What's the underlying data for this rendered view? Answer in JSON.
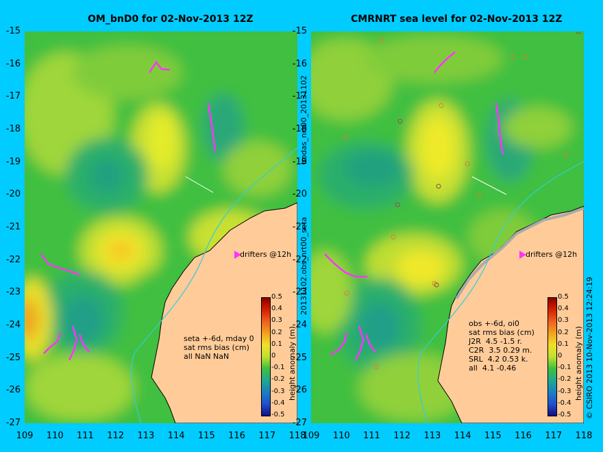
{
  "left": {
    "title": "OM_bnD0 for 02-Nov-2013 12Z",
    "drifters": "drifters @12h",
    "notes": [
      "seta +-6d, mday 0",
      "sat rms bias (cm)",
      "all NaN NaN"
    ]
  },
  "right": {
    "title": "CMRNRT sea level  for 02-Nov-2013 12Z",
    "drifters": "drifters @12h",
    "notes": [
      "obs +-6d, oi0",
      "sat rms bias (cm)",
      "J2R  4.5 -1.5 r.",
      "C2R  3.5 0.29 m.",
      "SRL  4.2 0.53 k.",
      "all  4.1 -0.46"
    ]
  },
  "axes": {
    "lat_ticks": [
      "-15",
      "-16",
      "-17",
      "-18",
      "-19",
      "-20",
      "-21",
      "-22",
      "-23",
      "-24",
      "-25",
      "-26",
      "-27"
    ],
    "lon_ticks": [
      "109",
      "110",
      "111",
      "112",
      "113",
      "114",
      "115",
      "116",
      "117",
      "118"
    ]
  },
  "colorbar": {
    "label": "height anomaly (m)",
    "ticks": [
      "0.5",
      "0.4",
      "0.3",
      "0.2",
      "0.1",
      "0",
      "-0.1",
      "-0.2",
      "-0.3",
      "-0.4",
      "-0.5"
    ]
  },
  "side_text": {
    "middle_top": "bodas_nrt00_20131102",
    "middle_bottom": "20131102.obs_nrt00_seta",
    "right": "© CSIRO 2013   10-Nov-2013 12:24:19"
  },
  "colors": {
    "background": "#00ccff",
    "land": "#ffcc99",
    "drifter": "#ff33ff"
  }
}
